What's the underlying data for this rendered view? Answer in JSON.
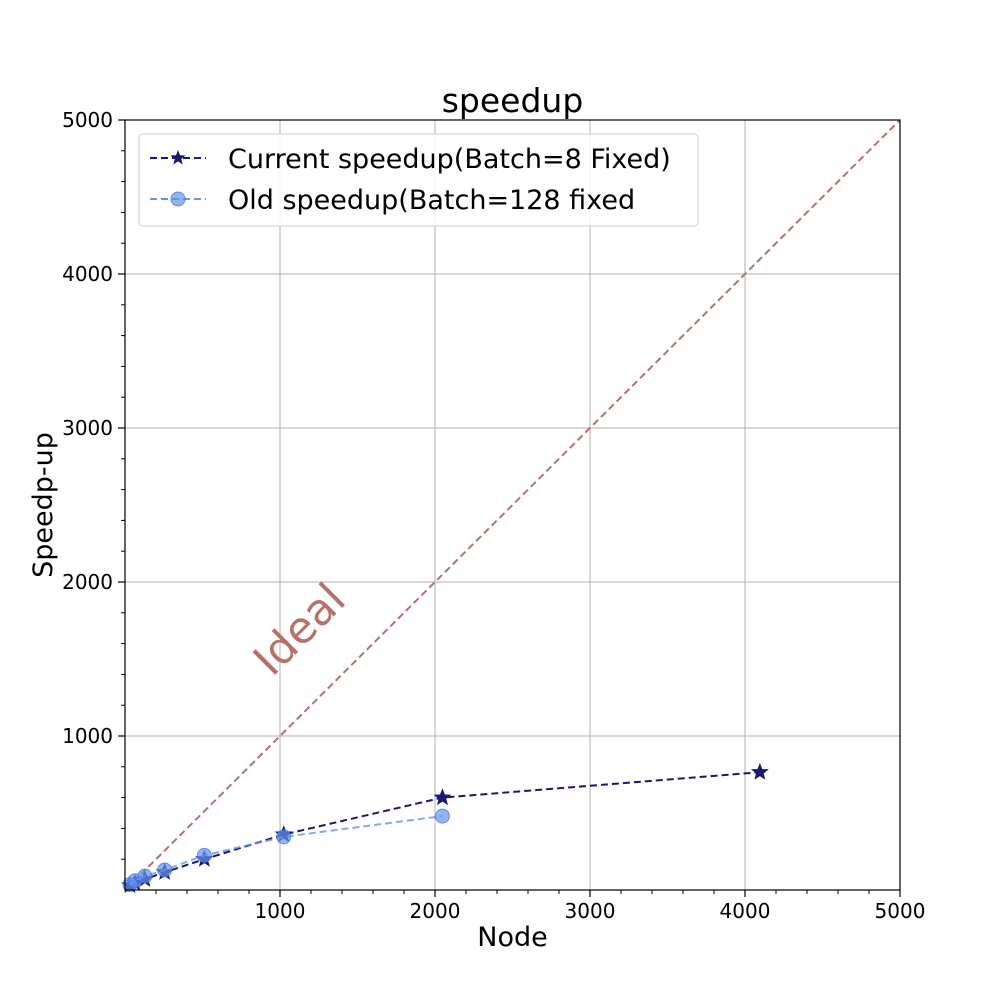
{
  "chart_data": {
    "type": "line",
    "title": "speedup",
    "xlabel": "Node",
    "ylabel": "Speedp-up",
    "xlim": [
      0,
      5000
    ],
    "ylim": [
      0,
      5000
    ],
    "xticks": [
      "1000",
      "2000",
      "3000",
      "4000",
      "5000"
    ],
    "yticks": [
      "1000",
      "2000",
      "3000",
      "4000",
      "5000"
    ],
    "grid": true,
    "legend_position": "upper-left",
    "series": [
      {
        "name": "Current speedup(Batch=8 Fixed)",
        "color": "#191970",
        "marker": "star",
        "linestyle": "dashed",
        "x": [
          32,
          64,
          128,
          256,
          512,
          1024,
          2048,
          4096
        ],
        "y": [
          30,
          45,
          70,
          115,
          200,
          360,
          600,
          765
        ]
      },
      {
        "name": "Old speedup(Batch=128 fixed",
        "color": "#6495ed",
        "marker": "circle",
        "linestyle": "dashed",
        "x": [
          32,
          64,
          128,
          256,
          512,
          1024,
          2048
        ],
        "y": [
          35,
          60,
          90,
          130,
          225,
          345,
          480
        ]
      }
    ],
    "reference_line": {
      "label": "Ideal",
      "color": "#b5726c",
      "x": [
        0,
        5000
      ],
      "y": [
        0,
        5000
      ]
    }
  }
}
